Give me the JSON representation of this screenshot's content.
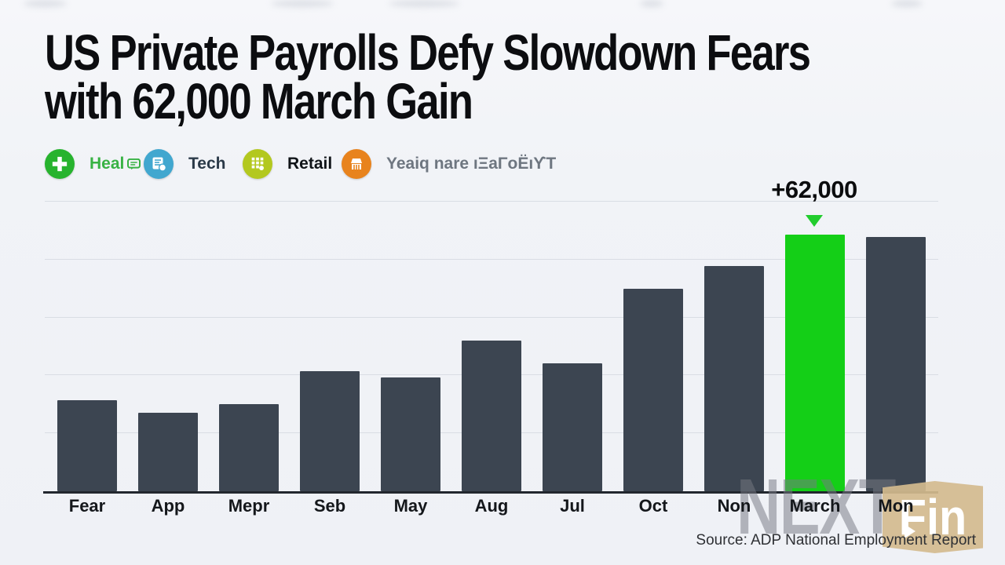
{
  "title": {
    "line1": "US Private Payrolls Defy Slowdown Fears",
    "line2": "with 62,000 March Gain"
  },
  "legend": {
    "items": [
      {
        "name": "health",
        "label": "Heal",
        "label_color": "#38b244",
        "circle_color": "#27b32e",
        "icon": "medical-plus-icon"
      },
      {
        "name": "tech",
        "label": "Tech",
        "label_color": "#2b3a49",
        "circle_color": "#41a7cf",
        "icon": "device-document-icon"
      },
      {
        "name": "retail",
        "label": "Retail",
        "label_color": "#101418",
        "circle_color": "#b3c81f",
        "icon": "building-grid-icon"
      },
      {
        "name": "market",
        "label": "Yeaiq nare ıΞaΓoËıϒT",
        "label_color": "#6e7680",
        "circle_color": "#e8831d",
        "icon": "storefront-icon"
      }
    ]
  },
  "chart_data": {
    "type": "bar",
    "title": "US Private Payrolls Defy Slowdown Fears with 62,000 March Gain",
    "categories": [
      "Fear",
      "App",
      "Mepr",
      "Seb",
      "May",
      "Aug",
      "Jul",
      "Oct",
      "Non",
      "March",
      "Mon"
    ],
    "values": [
      22000,
      19000,
      21000,
      29000,
      27500,
      36500,
      31000,
      49000,
      54500,
      62000,
      61500
    ],
    "highlight_index": 9,
    "highlight_category": "March",
    "bar_color": "#3c4551",
    "highlight_color": "#14cf17",
    "xlabel": "",
    "ylabel": "",
    "ylim": [
      0,
      70000
    ],
    "grid": true,
    "gridline_step": 14000,
    "legend_position": "none",
    "annotation": {
      "text": "+62,000",
      "target": "March",
      "marker": "green-down-triangle"
    }
  },
  "annotation_text": "+62,000",
  "watermark": {
    "gray_text": "NEXT",
    "badge_text": "Fin"
  },
  "source_text": "Source: ADP National Employment Report",
  "colors": {
    "background": "#f1f3f7",
    "bar": "#3c4551",
    "highlight": "#14cf17",
    "gridline": "#d9dde4",
    "axis": "#22272e",
    "title_text": "#0c0d10",
    "annotation_arrow": "#22cd2e",
    "watermark_badge": "#d4bb8e"
  }
}
